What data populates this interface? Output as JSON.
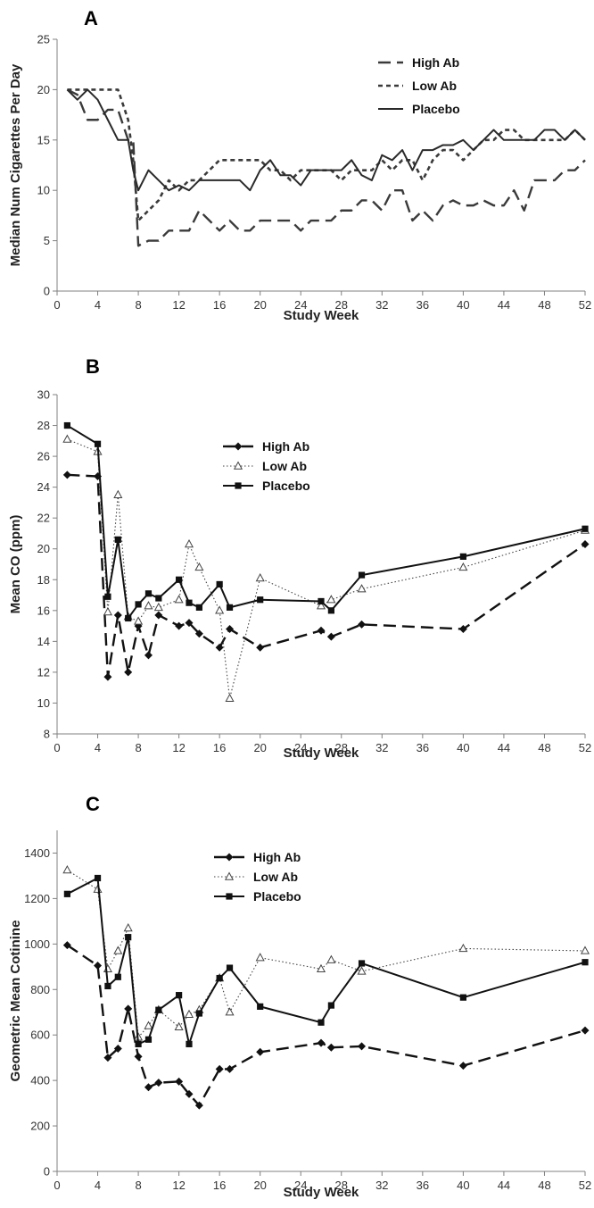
{
  "chart_data": [
    {
      "panel": "A",
      "type": "line",
      "xlabel": "Study Week",
      "ylabel": "Median Num Cigarettes Per Day",
      "xlim": [
        0,
        52
      ],
      "ylim": [
        0,
        25
      ],
      "xticks": [
        0,
        4,
        8,
        12,
        16,
        20,
        24,
        28,
        32,
        36,
        40,
        44,
        48,
        52
      ],
      "yticks": [
        0,
        5,
        10,
        15,
        20,
        25
      ],
      "grid": false,
      "legend": "top-right",
      "series": [
        {
          "name": "High Ab",
          "style": "long-dash",
          "marker": "none",
          "color": "#3a3a3a",
          "x": [
            1,
            2,
            3,
            4,
            5,
            6,
            7,
            7.5,
            8,
            9,
            10,
            11,
            12,
            13,
            14,
            15,
            16,
            17,
            18,
            19,
            20,
            21,
            22,
            23,
            24,
            25,
            26,
            27,
            28,
            29,
            30,
            31,
            32,
            33,
            34,
            35,
            36,
            37,
            38,
            39,
            40,
            41,
            42,
            43,
            44,
            45,
            46,
            47,
            48,
            49,
            50,
            51,
            52
          ],
          "y": [
            20,
            19.5,
            17,
            17,
            18,
            18,
            15,
            15,
            4.5,
            5,
            5,
            6,
            6,
            6,
            8,
            7,
            6,
            7,
            6,
            6,
            7,
            7,
            7,
            7,
            6,
            7,
            7,
            7,
            8,
            8,
            9,
            9,
            8,
            10,
            10,
            7,
            8,
            7,
            8.5,
            9,
            8.5,
            8.5,
            9,
            8.5,
            8.5,
            10,
            8,
            11,
            11,
            11,
            12,
            12,
            13
          ]
        },
        {
          "name": "Low Ab",
          "style": "short-dash",
          "marker": "none",
          "color": "#3a3a3a",
          "x": [
            1,
            2,
            3,
            4,
            5,
            6,
            7,
            7.5,
            8,
            9,
            10,
            11,
            12,
            13,
            14,
            15,
            16,
            17,
            18,
            19,
            20,
            21,
            22,
            23,
            24,
            25,
            26,
            27,
            28,
            29,
            30,
            31,
            32,
            33,
            34,
            35,
            36,
            37,
            38,
            39,
            40,
            41,
            42,
            43,
            44,
            45,
            46,
            47,
            48,
            49,
            50,
            51,
            52
          ],
          "y": [
            20,
            20,
            20,
            20,
            20,
            20,
            17,
            13,
            7,
            8,
            9,
            11,
            10,
            11,
            11,
            12,
            13,
            13,
            13,
            13,
            13,
            12,
            12,
            11,
            12,
            12,
            12,
            12,
            11,
            12,
            12,
            12,
            13,
            12,
            13,
            13,
            11,
            13,
            14,
            14,
            13,
            14,
            15,
            15,
            16,
            16,
            15,
            15,
            15,
            15,
            15,
            16,
            15
          ]
        },
        {
          "name": "Placebo",
          "style": "solid",
          "marker": "none",
          "color": "#2a2a2a",
          "x": [
            1,
            2,
            3,
            4,
            5,
            6,
            7,
            7.5,
            8,
            9,
            10,
            11,
            12,
            13,
            14,
            15,
            16,
            17,
            18,
            19,
            20,
            21,
            22,
            23,
            24,
            25,
            26,
            27,
            28,
            29,
            30,
            31,
            32,
            33,
            34,
            35,
            36,
            37,
            38,
            39,
            40,
            41,
            42,
            43,
            44,
            45,
            46,
            47,
            48,
            49,
            50,
            51,
            52
          ],
          "y": [
            20,
            19,
            20,
            19,
            17,
            15,
            15,
            12,
            10,
            12,
            11,
            10,
            10.5,
            10,
            11,
            11,
            11,
            11,
            11,
            10,
            12,
            13,
            11.5,
            11.5,
            10.5,
            12,
            12,
            12,
            12,
            13,
            11.5,
            11,
            13.5,
            13,
            14,
            12,
            14,
            14,
            14.5,
            14.5,
            15,
            14,
            15,
            16,
            15,
            15,
            15,
            15,
            16,
            16,
            15,
            16,
            15
          ]
        }
      ]
    },
    {
      "panel": "B",
      "type": "line",
      "xlabel": "Study Week",
      "ylabel": "Mean CO (ppm)",
      "xlim": [
        0,
        52
      ],
      "ylim": [
        8,
        30
      ],
      "xticks": [
        0,
        4,
        8,
        12,
        16,
        20,
        24,
        28,
        32,
        36,
        40,
        44,
        48,
        52
      ],
      "yticks": [
        8,
        10,
        12,
        14,
        16,
        18,
        20,
        22,
        24,
        26,
        28,
        30
      ],
      "grid": false,
      "legend": "top-left",
      "series": [
        {
          "name": "High Ab",
          "style": "long-dash",
          "marker": "diamond",
          "color": "#111111",
          "x": [
            1,
            4,
            5,
            6,
            7,
            8,
            9,
            10,
            12,
            13,
            14,
            16,
            17,
            20,
            26,
            27,
            30,
            40,
            52
          ],
          "y": [
            24.8,
            24.7,
            11.7,
            15.7,
            12.0,
            15.0,
            13.1,
            15.7,
            15.0,
            15.2,
            14.5,
            13.6,
            14.8,
            13.6,
            14.7,
            14.3,
            15.1,
            14.8,
            20.3
          ]
        },
        {
          "name": "Low Ab",
          "style": "dotted",
          "marker": "triangle-open",
          "color": "#444444",
          "x": [
            1,
            4,
            5,
            6,
            7,
            8,
            9,
            10,
            12,
            13,
            14,
            16,
            17,
            20,
            26,
            27,
            30,
            40,
            52
          ],
          "y": [
            27.1,
            26.3,
            15.9,
            23.5,
            15.6,
            15.3,
            16.3,
            16.2,
            16.7,
            20.3,
            18.8,
            16.0,
            10.3,
            18.1,
            16.3,
            16.7,
            17.4,
            18.8,
            21.2
          ]
        },
        {
          "name": "Placebo",
          "style": "solid",
          "marker": "square",
          "color": "#111111",
          "x": [
            1,
            4,
            5,
            6,
            7,
            8,
            9,
            10,
            12,
            13,
            14,
            16,
            17,
            20,
            26,
            27,
            30,
            40,
            52
          ],
          "y": [
            28.0,
            26.8,
            16.9,
            20.6,
            15.5,
            16.4,
            17.1,
            16.8,
            18.0,
            16.5,
            16.2,
            17.7,
            16.2,
            16.7,
            16.6,
            16.0,
            18.3,
            19.5,
            21.3
          ]
        }
      ]
    },
    {
      "panel": "C",
      "type": "line",
      "xlabel": "Study Week",
      "ylabel": "Geometric Mean Cotinine",
      "xlim": [
        0,
        52
      ],
      "ylim": [
        0,
        1500
      ],
      "xticks": [
        0,
        4,
        8,
        12,
        16,
        20,
        24,
        28,
        32,
        36,
        40,
        44,
        48,
        52
      ],
      "yticks": [
        0,
        200,
        400,
        600,
        800,
        1000,
        1200,
        1400
      ],
      "grid": false,
      "legend": "top-center",
      "series": [
        {
          "name": "High Ab",
          "style": "long-dash",
          "marker": "diamond",
          "color": "#111111",
          "x": [
            1,
            4,
            5,
            6,
            7,
            8,
            9,
            10,
            12,
            13,
            14,
            16,
            17,
            20,
            26,
            27,
            30,
            40,
            52
          ],
          "y": [
            995,
            905,
            500,
            540,
            715,
            505,
            370,
            390,
            395,
            340,
            290,
            450,
            450,
            525,
            565,
            545,
            550,
            465,
            620
          ]
        },
        {
          "name": "Low Ab",
          "style": "dotted",
          "marker": "triangle-open",
          "color": "#444444",
          "x": [
            1,
            4,
            5,
            6,
            7,
            8,
            9,
            10,
            12,
            13,
            14,
            16,
            17,
            20,
            26,
            27,
            30,
            40,
            52
          ],
          "y": [
            1325,
            1240,
            890,
            970,
            1070,
            590,
            640,
            710,
            635,
            690,
            710,
            850,
            700,
            940,
            890,
            930,
            880,
            980,
            970
          ]
        },
        {
          "name": "Placebo",
          "style": "solid",
          "marker": "square",
          "color": "#111111",
          "x": [
            1,
            4,
            5,
            6,
            7,
            8,
            9,
            10,
            12,
            13,
            14,
            16,
            17,
            20,
            26,
            27,
            30,
            40,
            52
          ],
          "y": [
            1220,
            1290,
            815,
            855,
            1030,
            560,
            580,
            710,
            775,
            560,
            695,
            850,
            895,
            725,
            655,
            730,
            915,
            765,
            920
          ]
        }
      ]
    }
  ]
}
